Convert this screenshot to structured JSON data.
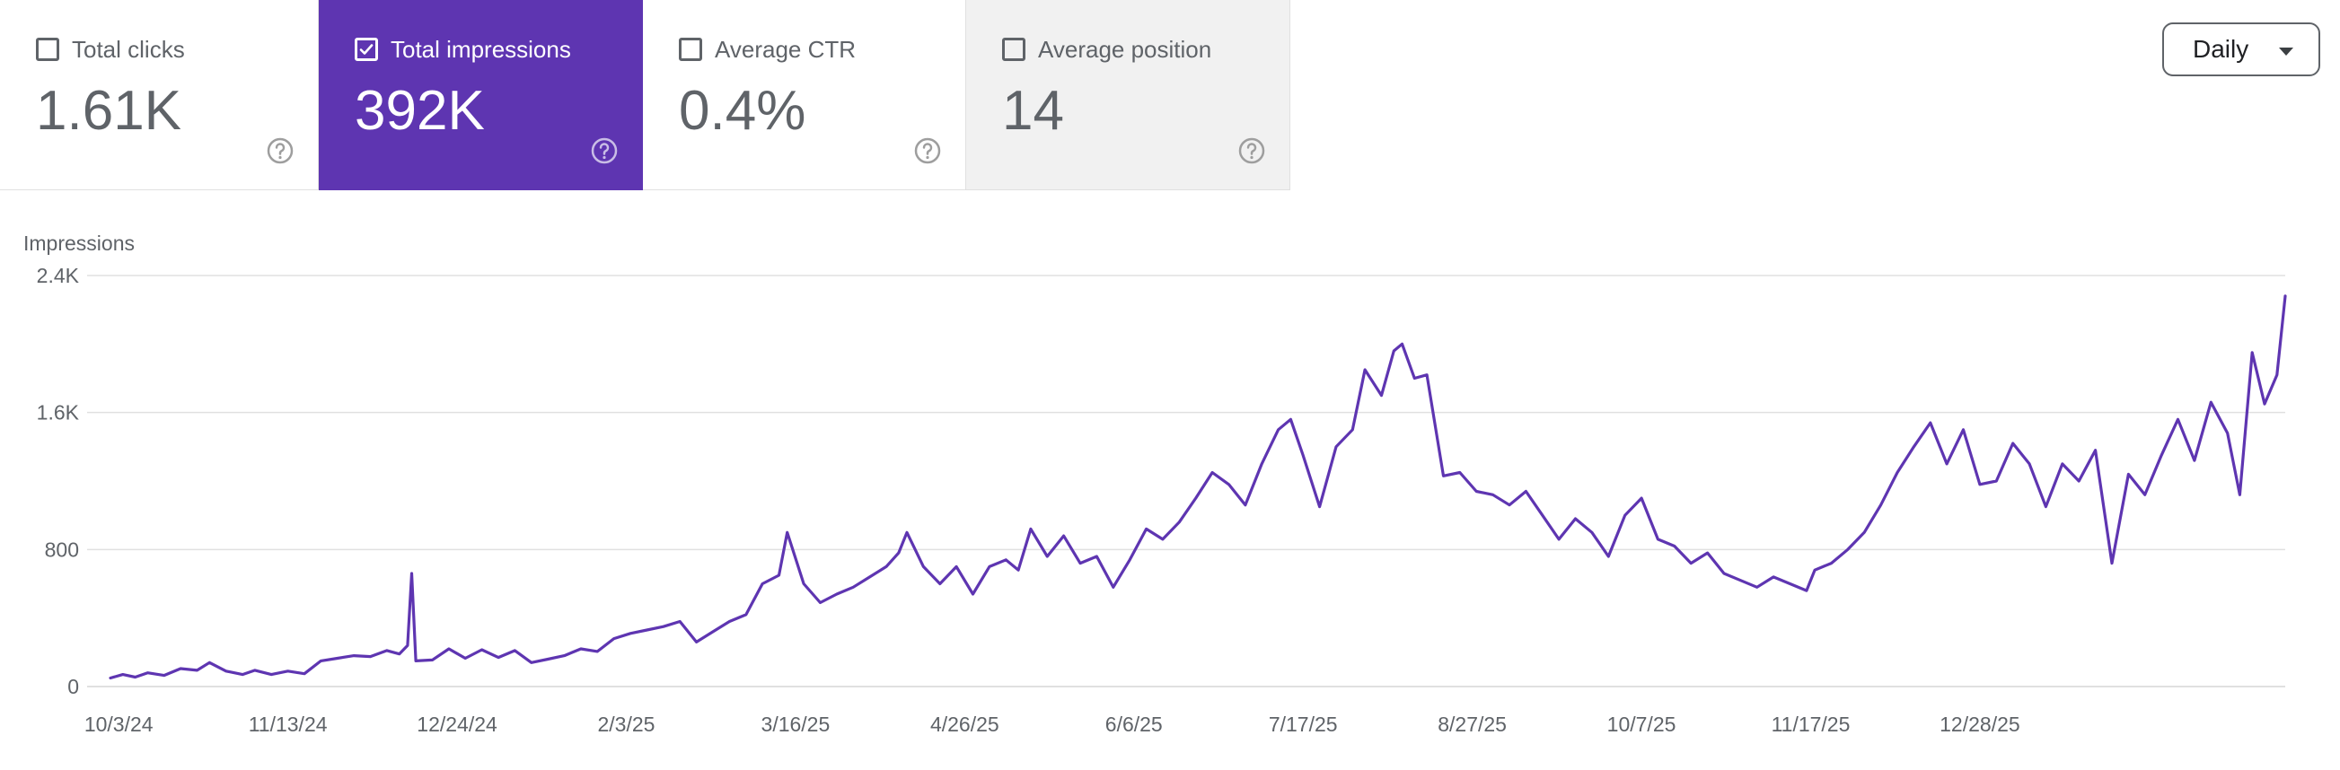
{
  "metrics": [
    {
      "label": "Total clicks",
      "value": "1.61K",
      "checked": false
    },
    {
      "label": "Total impressions",
      "value": "392K",
      "checked": true
    },
    {
      "label": "Average CTR",
      "value": "0.4%",
      "checked": false
    },
    {
      "label": "Average position",
      "value": "14",
      "checked": false
    }
  ],
  "range_button": {
    "label": "Daily",
    "icon": "dropdown-arrow-icon"
  },
  "help_icon": "help-circle-icon",
  "colors": {
    "accent": "#5e35b1",
    "line": "#5e35b1",
    "grid": "#e0e0e0",
    "text": "#5f6368"
  },
  "chart_data": {
    "type": "line",
    "ylabel": "Impressions",
    "y_ticks": [
      "0",
      "800",
      "1.6K",
      "2.4K"
    ],
    "ylim": [
      0,
      2400
    ],
    "x_tick_labels": [
      "10/3/24",
      "11/13/24",
      "12/24/24",
      "2/3/25",
      "3/16/25",
      "4/26/25",
      "6/6/25",
      "7/17/25",
      "8/27/25",
      "10/7/25",
      "11/17/25",
      "12/28/25"
    ],
    "x_start": "2024-10-01",
    "x_end": "2026-01-31",
    "grid": true,
    "legend": false,
    "series": [
      {
        "name": "Impressions",
        "points": [
          [
            "2024-10-01",
            50
          ],
          [
            "2024-10-04",
            70
          ],
          [
            "2024-10-07",
            55
          ],
          [
            "2024-10-10",
            80
          ],
          [
            "2024-10-14",
            65
          ],
          [
            "2024-10-18",
            105
          ],
          [
            "2024-10-22",
            95
          ],
          [
            "2024-10-25",
            140
          ],
          [
            "2024-10-29",
            90
          ],
          [
            "2024-11-02",
            70
          ],
          [
            "2024-11-05",
            95
          ],
          [
            "2024-11-09",
            70
          ],
          [
            "2024-11-13",
            90
          ],
          [
            "2024-11-17",
            75
          ],
          [
            "2024-11-21",
            150
          ],
          [
            "2024-11-25",
            165
          ],
          [
            "2024-11-29",
            180
          ],
          [
            "2024-12-03",
            175
          ],
          [
            "2024-12-07",
            210
          ],
          [
            "2024-12-10",
            190
          ],
          [
            "2024-12-12",
            240
          ],
          [
            "2024-12-13",
            660
          ],
          [
            "2024-12-14",
            150
          ],
          [
            "2024-12-18",
            155
          ],
          [
            "2024-12-22",
            220
          ],
          [
            "2024-12-26",
            165
          ],
          [
            "2024-12-30",
            215
          ],
          [
            "2025-01-03",
            170
          ],
          [
            "2025-01-07",
            210
          ],
          [
            "2025-01-11",
            140
          ],
          [
            "2025-01-15",
            160
          ],
          [
            "2025-01-19",
            180
          ],
          [
            "2025-01-23",
            220
          ],
          [
            "2025-01-27",
            205
          ],
          [
            "2025-01-31",
            280
          ],
          [
            "2025-02-04",
            310
          ],
          [
            "2025-02-08",
            330
          ],
          [
            "2025-02-12",
            350
          ],
          [
            "2025-02-16",
            380
          ],
          [
            "2025-02-20",
            260
          ],
          [
            "2025-02-24",
            320
          ],
          [
            "2025-02-28",
            380
          ],
          [
            "2025-03-04",
            420
          ],
          [
            "2025-03-08",
            600
          ],
          [
            "2025-03-12",
            650
          ],
          [
            "2025-03-14",
            900
          ],
          [
            "2025-03-18",
            600
          ],
          [
            "2025-03-22",
            490
          ],
          [
            "2025-03-26",
            540
          ],
          [
            "2025-03-30",
            580
          ],
          [
            "2025-04-03",
            640
          ],
          [
            "2025-04-07",
            700
          ],
          [
            "2025-04-10",
            780
          ],
          [
            "2025-04-12",
            900
          ],
          [
            "2025-04-16",
            700
          ],
          [
            "2025-04-20",
            600
          ],
          [
            "2025-04-24",
            700
          ],
          [
            "2025-04-28",
            540
          ],
          [
            "2025-05-02",
            700
          ],
          [
            "2025-05-06",
            740
          ],
          [
            "2025-05-09",
            680
          ],
          [
            "2025-05-12",
            920
          ],
          [
            "2025-05-16",
            760
          ],
          [
            "2025-05-20",
            880
          ],
          [
            "2025-05-24",
            720
          ],
          [
            "2025-05-28",
            760
          ],
          [
            "2025-06-01",
            580
          ],
          [
            "2025-06-05",
            740
          ],
          [
            "2025-06-09",
            920
          ],
          [
            "2025-06-13",
            860
          ],
          [
            "2025-06-17",
            960
          ],
          [
            "2025-06-21",
            1100
          ],
          [
            "2025-06-25",
            1250
          ],
          [
            "2025-06-29",
            1180
          ],
          [
            "2025-07-03",
            1060
          ],
          [
            "2025-07-07",
            1300
          ],
          [
            "2025-07-11",
            1500
          ],
          [
            "2025-07-14",
            1560
          ],
          [
            "2025-07-17",
            1350
          ],
          [
            "2025-07-21",
            1050
          ],
          [
            "2025-07-25",
            1400
          ],
          [
            "2025-07-29",
            1500
          ],
          [
            "2025-08-01",
            1850
          ],
          [
            "2025-08-05",
            1700
          ],
          [
            "2025-08-08",
            1960
          ],
          [
            "2025-08-10",
            2000
          ],
          [
            "2025-08-13",
            1800
          ],
          [
            "2025-08-16",
            1820
          ],
          [
            "2025-08-20",
            1230
          ],
          [
            "2025-08-24",
            1250
          ],
          [
            "2025-08-28",
            1140
          ],
          [
            "2025-09-01",
            1120
          ],
          [
            "2025-09-05",
            1060
          ],
          [
            "2025-09-09",
            1140
          ],
          [
            "2025-09-13",
            1000
          ],
          [
            "2025-09-17",
            860
          ],
          [
            "2025-09-21",
            980
          ],
          [
            "2025-09-25",
            900
          ],
          [
            "2025-09-29",
            760
          ],
          [
            "2025-10-03",
            1000
          ],
          [
            "2025-10-07",
            1100
          ],
          [
            "2025-10-11",
            860
          ],
          [
            "2025-10-15",
            820
          ],
          [
            "2025-10-19",
            720
          ],
          [
            "2025-10-23",
            780
          ],
          [
            "2025-10-27",
            660
          ],
          [
            "2025-10-31",
            620
          ],
          [
            "2025-11-04",
            580
          ],
          [
            "2025-11-08",
            640
          ],
          [
            "2025-11-12",
            600
          ],
          [
            "2025-11-16",
            560
          ],
          [
            "2025-11-18",
            680
          ],
          [
            "2025-11-22",
            720
          ],
          [
            "2025-11-26",
            800
          ],
          [
            "2025-11-30",
            900
          ],
          [
            "2025-12-04",
            1060
          ],
          [
            "2025-12-08",
            1250
          ],
          [
            "2025-12-12",
            1400
          ],
          [
            "2025-12-16",
            1540
          ],
          [
            "2025-12-20",
            1300
          ],
          [
            "2025-12-24",
            1500
          ],
          [
            "2025-12-28",
            1180
          ],
          [
            "2026-01-01",
            1200
          ],
          [
            "2026-01-05",
            1420
          ],
          [
            "2026-01-09",
            1300
          ],
          [
            "2026-01-13",
            1050
          ],
          [
            "2026-01-17",
            1300
          ],
          [
            "2026-01-21",
            1200
          ],
          [
            "2026-01-25",
            1380
          ],
          [
            "2026-01-29",
            720
          ],
          [
            "2026-02-02",
            1240
          ],
          [
            "2026-02-06",
            1120
          ],
          [
            "2026-02-10",
            1350
          ],
          [
            "2026-02-14",
            1560
          ],
          [
            "2026-02-18",
            1320
          ],
          [
            "2026-02-22",
            1660
          ],
          [
            "2026-02-26",
            1480
          ],
          [
            "2026-03-01",
            1120
          ],
          [
            "2026-03-04",
            1950
          ],
          [
            "2026-03-07",
            1650
          ],
          [
            "2026-03-10",
            1820
          ],
          [
            "2026-03-12",
            2280
          ]
        ]
      }
    ]
  }
}
